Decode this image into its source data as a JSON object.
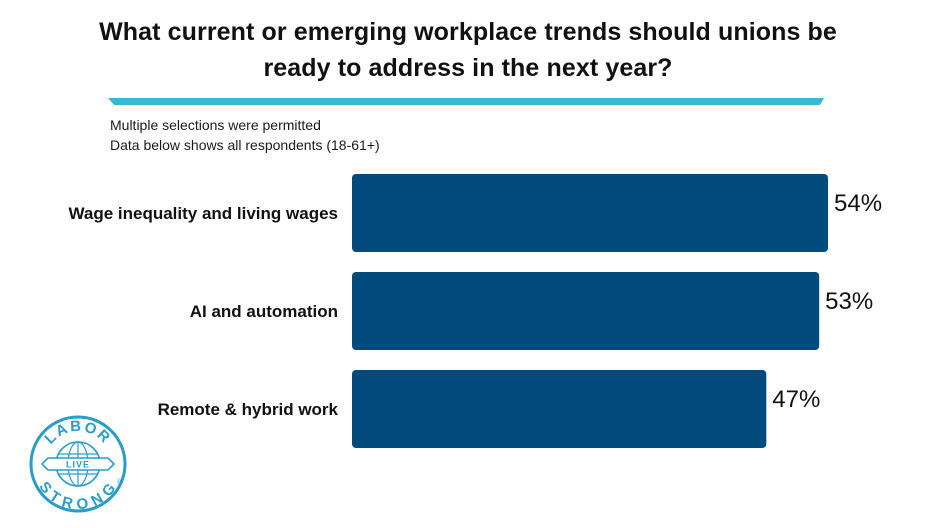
{
  "title": "What current or emerging workplace trends should unions be ready to address in the next year?",
  "notes": [
    "Multiple selections were permitted",
    "Data below shows all respondents (18-61+)"
  ],
  "colors": {
    "bar": "#004a7c",
    "accent_rule": "#3ab8d6",
    "logo": "#2a9cc8"
  },
  "logo": {
    "top_text": "LABOR",
    "middle_text": "LIVE",
    "bottom_text": "STRONG",
    "mark": "®"
  },
  "chart_data": {
    "type": "bar",
    "orientation": "horizontal",
    "categories": [
      "Wage inequality and living wages",
      "AI and automation",
      "Remote & hybrid work"
    ],
    "values": [
      54,
      53,
      47
    ],
    "value_suffix": "%",
    "title": "What current or emerging workplace trends should unions be ready to address in the next year?",
    "xlabel": "",
    "ylabel": "",
    "xlim": [
      0,
      54
    ],
    "grid": false,
    "legend": "none"
  }
}
